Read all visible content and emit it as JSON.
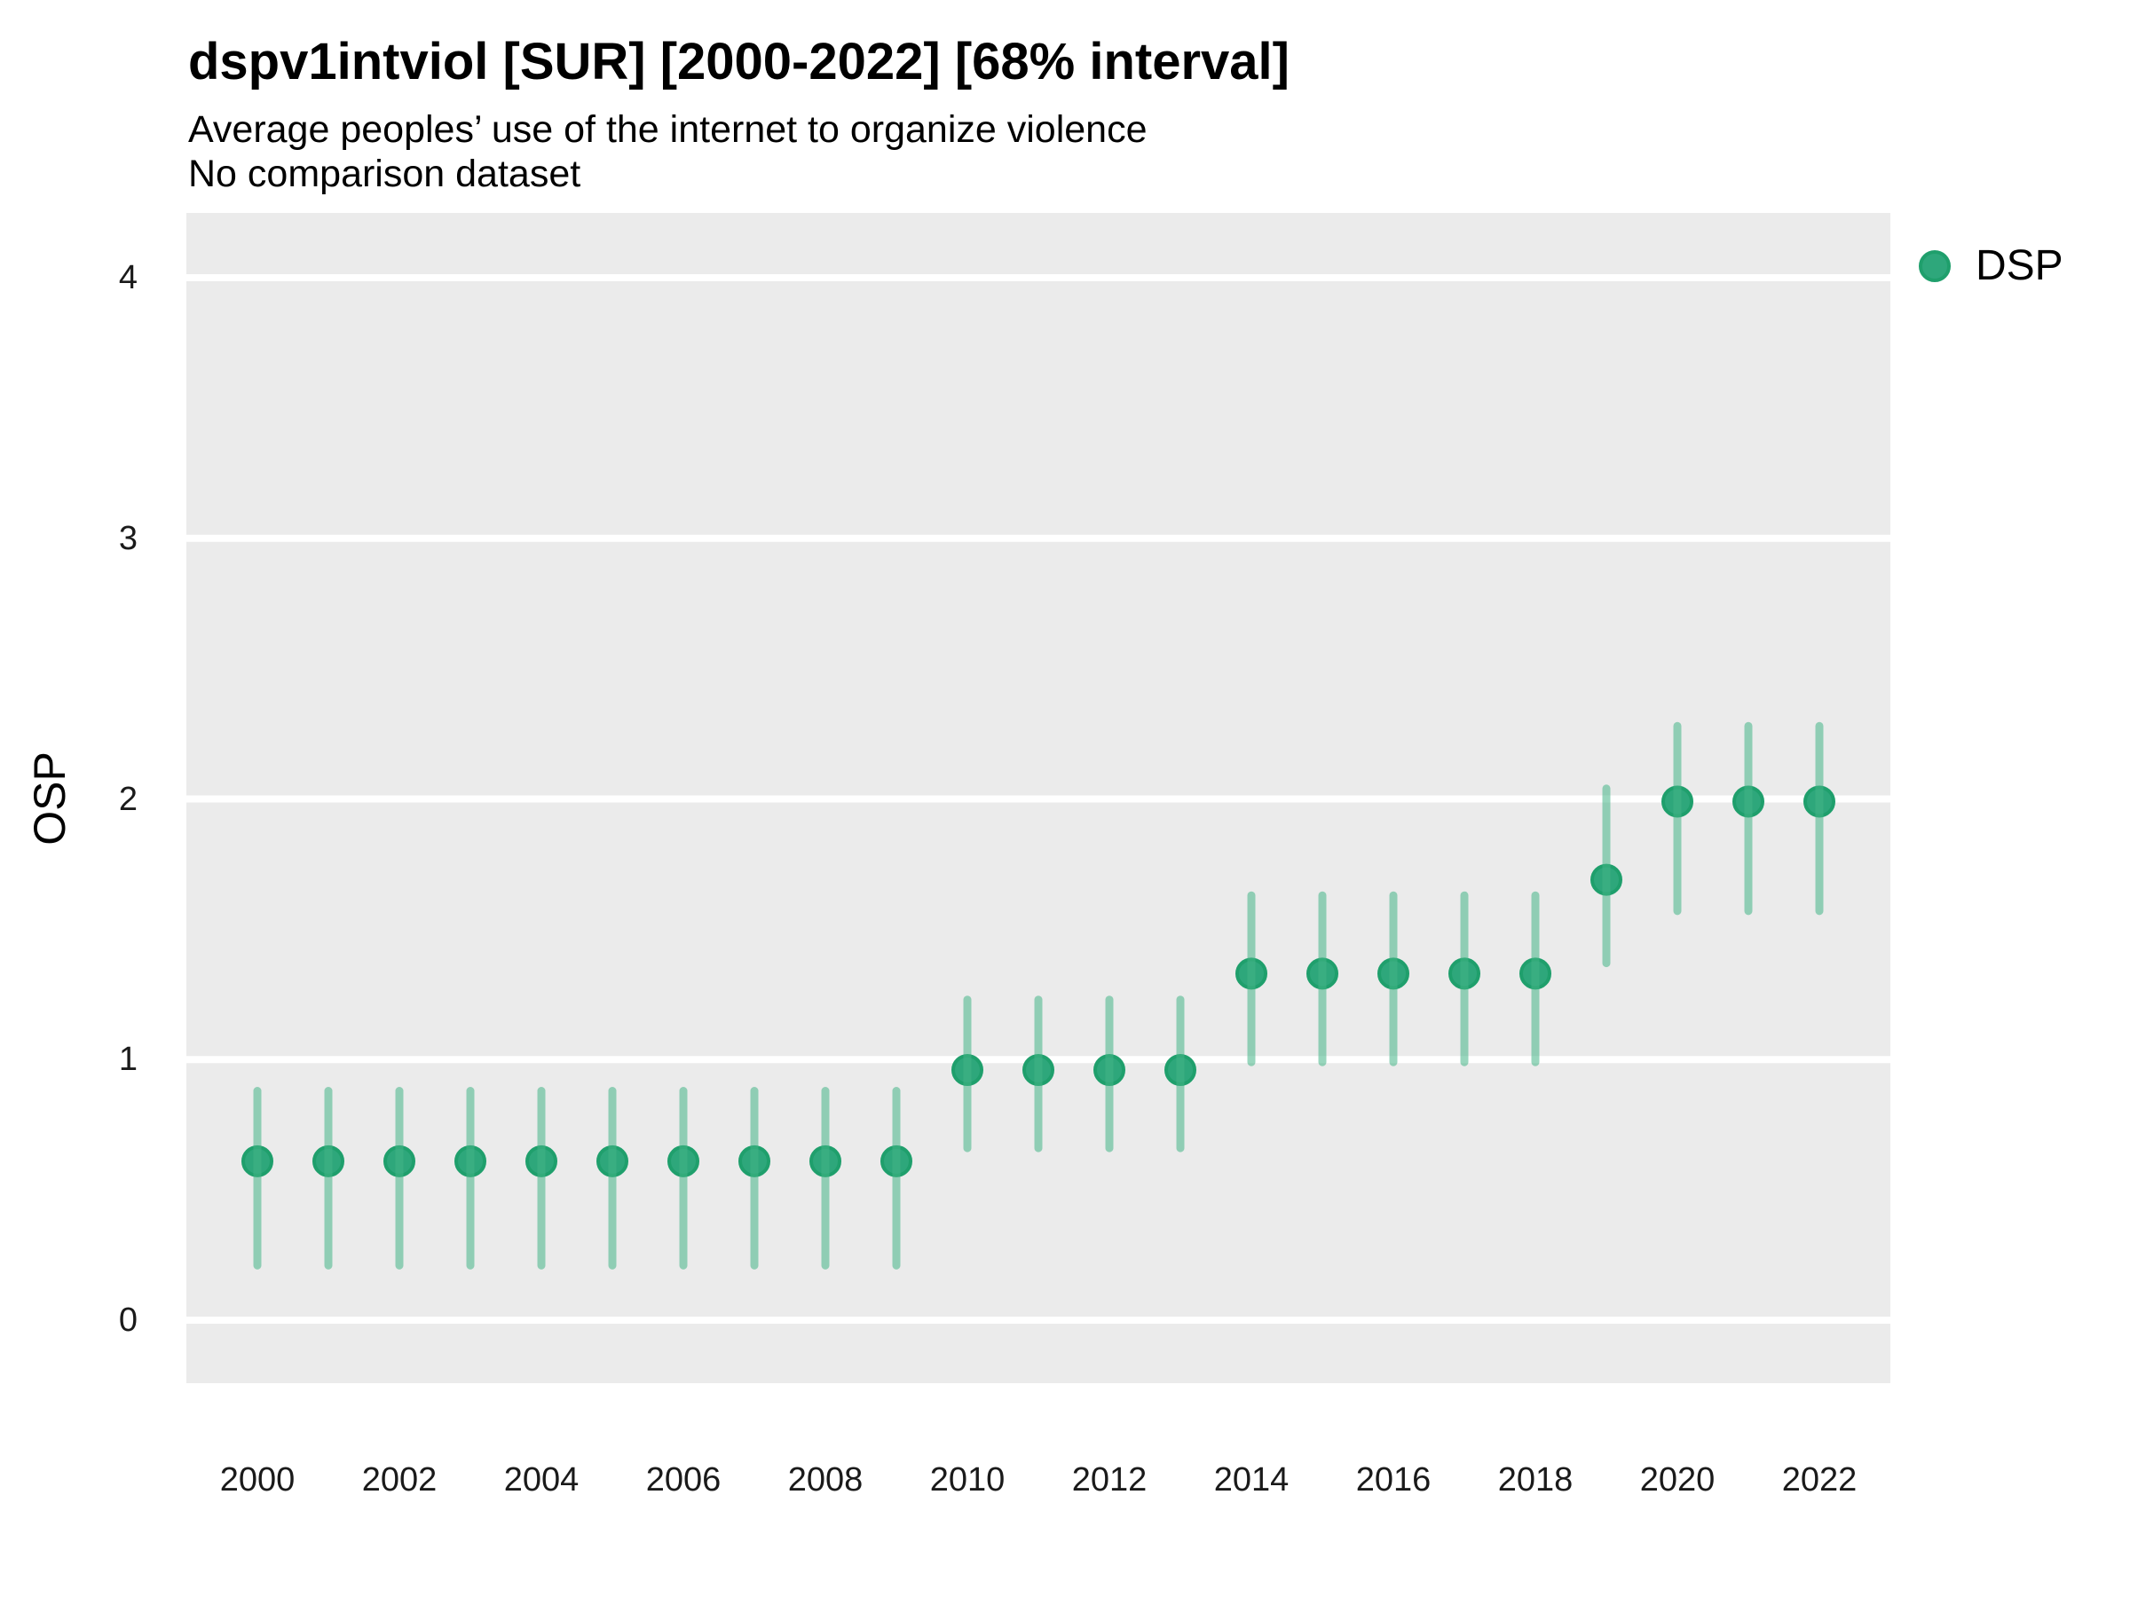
{
  "header": {
    "title": "dspv1intviol [SUR] [2000-2022] [68% interval]",
    "subtitle": "Average peoples’ use of the internet to organize violence",
    "note": "No comparison dataset"
  },
  "y_axis_title": "OSP",
  "legend": {
    "label": "DSP"
  },
  "chart_data": {
    "type": "scatter",
    "subtype": "pointrange",
    "title": "dspv1intviol [SUR] [2000-2022] [68% interval]",
    "subtitle": "Average peoples’ use of the internet to organize violence",
    "note": "No comparison dataset",
    "interval_level": "68%",
    "xlabel": "",
    "ylabel": "OSP",
    "xlim": [
      1999,
      2023
    ],
    "ylim": [
      -0.24,
      4.25
    ],
    "x_ticks": [
      2000,
      2002,
      2004,
      2006,
      2008,
      2010,
      2012,
      2014,
      2016,
      2018,
      2020,
      2022
    ],
    "y_ticks": [
      0,
      1,
      2,
      3,
      4
    ],
    "grid": "major-horizontal-white-on-grey",
    "legend_position": "right-top",
    "series": [
      {
        "name": "DSP",
        "x": [
          2000,
          2001,
          2002,
          2003,
          2004,
          2005,
          2006,
          2007,
          2008,
          2009,
          2010,
          2011,
          2012,
          2013,
          2014,
          2015,
          2016,
          2017,
          2018,
          2019,
          2020,
          2021,
          2022
        ],
        "y": [
          0.61,
          0.61,
          0.61,
          0.61,
          0.61,
          0.61,
          0.61,
          0.61,
          0.61,
          0.61,
          0.96,
          0.96,
          0.96,
          0.96,
          1.33,
          1.33,
          1.33,
          1.33,
          1.33,
          1.69,
          1.99,
          1.99,
          1.99
        ],
        "y_lo": [
          0.21,
          0.21,
          0.21,
          0.21,
          0.21,
          0.21,
          0.21,
          0.21,
          0.21,
          0.21,
          0.66,
          0.66,
          0.66,
          0.66,
          0.99,
          0.99,
          0.99,
          0.99,
          0.99,
          1.37,
          1.57,
          1.57,
          1.57
        ],
        "y_hi": [
          0.88,
          0.88,
          0.88,
          0.88,
          0.88,
          0.88,
          0.88,
          0.88,
          0.88,
          0.88,
          1.23,
          1.23,
          1.23,
          1.23,
          1.63,
          1.63,
          1.63,
          1.63,
          1.63,
          2.04,
          2.28,
          2.28,
          2.28
        ]
      }
    ],
    "colors": {
      "point_fill": "#2EA77B",
      "point_stroke": "#1F9F6C",
      "interval_line": "rgba(68,180,135,0.55)",
      "interval_line_flat": "#8FCDB4",
      "panel_bg": "#EBEBEB",
      "gridline": "#FFFFFF",
      "text": "#000000"
    }
  }
}
